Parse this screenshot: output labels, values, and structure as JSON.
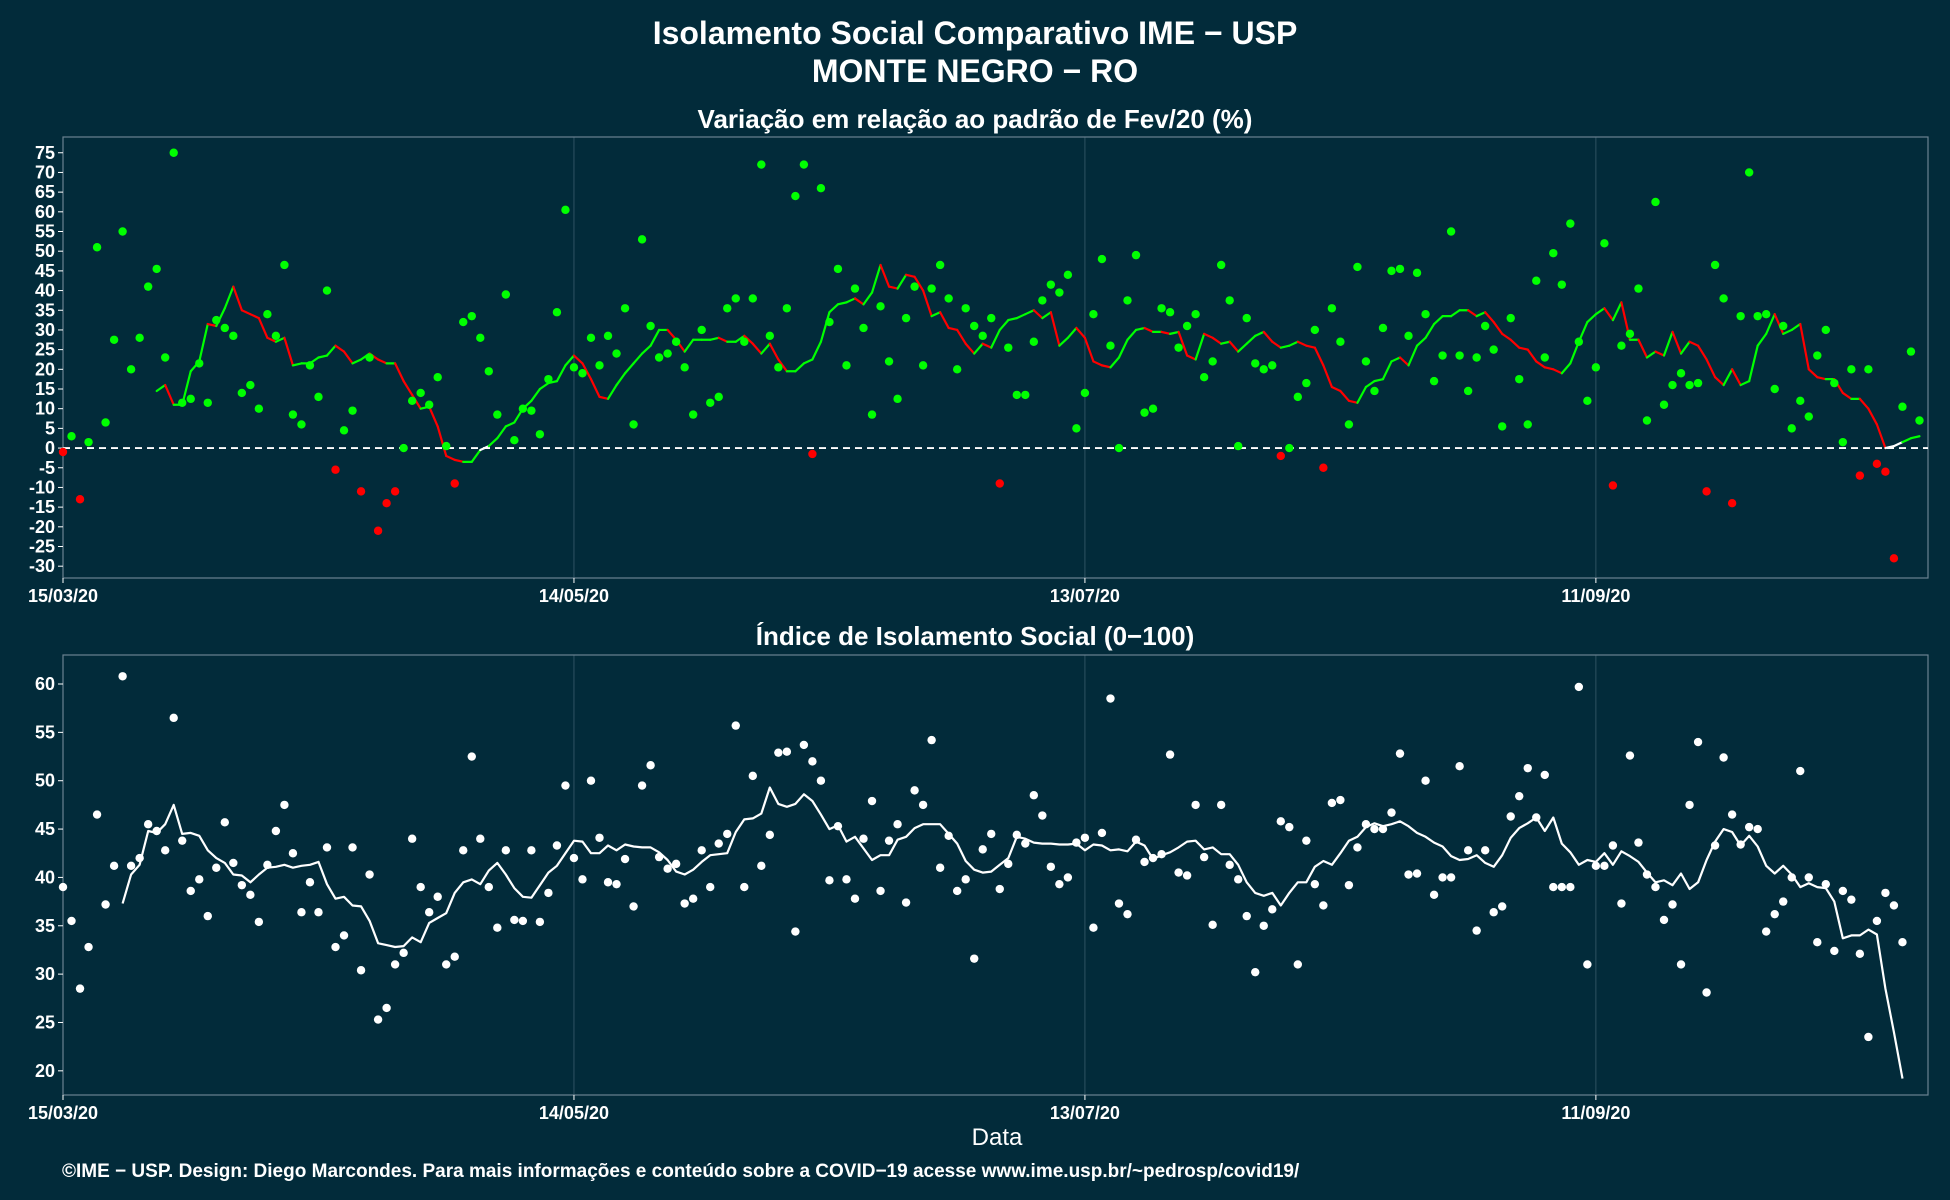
{
  "header": {
    "title_line1": "Isolamento Social Comparativo IME − USP",
    "title_line2": "MONTE NEGRO − RO"
  },
  "footer": {
    "credit": "©IME − USP. Design: Diego Marcondes. Para mais informações e conteúdo sobre a COVID−19 acesse www.ime.usp.br/~pedrosp/covid19/"
  },
  "colors": {
    "background": "#022b3a",
    "positive": "#00ff00",
    "negative": "#ff0000",
    "index": "#ffffff"
  },
  "chart_data": [
    {
      "type": "scatter",
      "title": "Variação em relação ao padrão de Fev/20 (%)",
      "xlabel": "",
      "ylabel": "",
      "x_tick_labels": [
        "15/03/20",
        "14/05/20",
        "13/07/20",
        "11/09/20"
      ],
      "x_tick_days": [
        0,
        60,
        120,
        180
      ],
      "xlim_days": [
        0,
        219
      ],
      "ylim": [
        -33,
        79
      ],
      "y_ticks": [
        -30,
        -25,
        -20,
        -15,
        -10,
        -5,
        0,
        5,
        10,
        15,
        20,
        25,
        30,
        35,
        40,
        45,
        50,
        55,
        60,
        65,
        70,
        75
      ],
      "reference_line": 0,
      "grid": "vertical",
      "series": [
        {
          "kind": "daily_points",
          "color_rule": "green if value >= 0, red if value < 0",
          "values": [
            -1,
            3,
            -13,
            1.5,
            51,
            6.5,
            27.5,
            55,
            20,
            28,
            41,
            45.5,
            23,
            75,
            11.5,
            12.5,
            21.5,
            11.5,
            32.5,
            30.5,
            28.5,
            14,
            16,
            10,
            34,
            28.5,
            46.5,
            8.5,
            6,
            21,
            13,
            40,
            -5.5,
            4.5,
            9.5,
            -11,
            23,
            -21,
            -14,
            -11,
            0,
            12,
            14,
            11,
            18,
            0.5,
            -9,
            32,
            33.5,
            28,
            19.5,
            8.5,
            39,
            2,
            10,
            9.5,
            3.5,
            17.5,
            34.5,
            60.5,
            20.5,
            19,
            28,
            21,
            28.5,
            24,
            35.5,
            6,
            53,
            31,
            23,
            24,
            27,
            20.5,
            8.5,
            30,
            11.5,
            13,
            35.5,
            38,
            27,
            38,
            72,
            28.5,
            20.5,
            35.5,
            64,
            72,
            -1.5,
            66,
            32,
            45.5,
            21,
            40.5,
            30.5,
            8.5,
            36,
            22,
            12.5,
            33,
            41,
            21,
            40.5,
            46.5,
            38,
            20,
            35.5,
            31,
            28.5,
            33,
            -9,
            25.5,
            13.5,
            13.5,
            27,
            37.5,
            41.5,
            39.5,
            44,
            5,
            14,
            34,
            48,
            26,
            0,
            37.5,
            49,
            9,
            10,
            35.5,
            34.5,
            25.5,
            31,
            34,
            18,
            22,
            46.5,
            37.5,
            0.5,
            33,
            21.5,
            20,
            21,
            -2,
            0,
            13,
            16.5,
            30,
            -5,
            35.5,
            27,
            6,
            46,
            22,
            14.5,
            30.5,
            45,
            45.5,
            28.5,
            44.5,
            34,
            17,
            23.5,
            55,
            23.5,
            14.5,
            23,
            31,
            25,
            5.5,
            33,
            17.5,
            6,
            42.5,
            23,
            49.5,
            41.5,
            57,
            27,
            12,
            20.5,
            52,
            -9.5,
            26,
            29,
            40.5,
            7,
            62.5,
            11,
            16,
            19,
            16,
            16.5,
            -11,
            46.5,
            38,
            -14,
            33.5,
            70,
            33.5,
            34,
            15,
            31,
            5,
            12,
            8,
            23.5,
            30,
            16.5,
            1.5,
            20,
            -7,
            20,
            -4,
            -6,
            -28,
            10.5,
            24.5,
            7
          ]
        },
        {
          "kind": "moving_average_line",
          "color_rule": "green when rising, red when falling, white when near zero",
          "values": [
            14.5,
            16,
            11,
            11,
            19.5,
            22,
            31.5,
            31,
            35.5,
            41,
            35,
            34,
            33,
            28,
            27,
            28,
            21,
            21.5,
            21.5,
            23,
            23.5,
            26,
            24.5,
            21.5,
            22.5,
            24,
            22.5,
            21.5,
            21.5,
            17,
            13.5,
            10,
            10.5,
            5.5,
            -2,
            -3,
            -3.5,
            -3.5,
            -0.5,
            0.5,
            2.5,
            5.5,
            6.5,
            10,
            12,
            15,
            16.5,
            17,
            21,
            23.5,
            21.5,
            17.5,
            13,
            12.5,
            16,
            19,
            21.5,
            24,
            26,
            30,
            30,
            27.5,
            24.5,
            27.5,
            27.5,
            27.5,
            28,
            27,
            27,
            28.5,
            26.5,
            24,
            26.5,
            22.5,
            19.5,
            19.5,
            21.5,
            22.5,
            27,
            34.5,
            36.5,
            37,
            38,
            36.5,
            39.5,
            46.5,
            41,
            40.5,
            44,
            43.5,
            40,
            33.5,
            34.5,
            30.5,
            30,
            26.5,
            24,
            26.5,
            25.5,
            30,
            32.5,
            33,
            34,
            35,
            33,
            34.5,
            26,
            28,
            30.5,
            28,
            22,
            21,
            20.5,
            23,
            27.5,
            30,
            30.5,
            29.5,
            29.5,
            29,
            29.5,
            23.5,
            22.5,
            29,
            28,
            26.5,
            27,
            24.5,
            26.5,
            28.5,
            29.5,
            27,
            25.5,
            26,
            27,
            26,
            25.5,
            21,
            15.5,
            14.5,
            12,
            11.5,
            15.5,
            17,
            17.5,
            22,
            23,
            21,
            26,
            28,
            31.5,
            33.5,
            33.5,
            35,
            35,
            33.5,
            34.5,
            32,
            29,
            27.5,
            25.5,
            25,
            22,
            20.5,
            20,
            19,
            21.5,
            27,
            32,
            34,
            35.5,
            32.5,
            37,
            27.5,
            27.5,
            23,
            24.5,
            23.5,
            29.5,
            24,
            27,
            26,
            22.5,
            18,
            16,
            20,
            16,
            17,
            26,
            29,
            34,
            29,
            30,
            31.5,
            20,
            18,
            17.5,
            17.5,
            14,
            12.5,
            12.5,
            10,
            6,
            0,
            0.5,
            1.5,
            2.5,
            3
          ]
        }
      ]
    },
    {
      "type": "scatter",
      "title": "Índice de Isolamento Social (0−100)",
      "xlabel": "Data",
      "ylabel": "",
      "x_tick_labels": [
        "15/03/20",
        "14/05/20",
        "13/07/20",
        "11/09/20"
      ],
      "x_tick_days": [
        0,
        60,
        120,
        180
      ],
      "xlim_days": [
        0,
        219
      ],
      "ylim": [
        17.5,
        63
      ],
      "y_ticks": [
        20,
        25,
        30,
        35,
        40,
        45,
        50,
        55,
        60
      ],
      "grid": "vertical",
      "series": [
        {
          "kind": "daily_points",
          "color": "#ffffff",
          "values": [
            39,
            35.5,
            28.5,
            32.8,
            46.5,
            37.2,
            41.2,
            60.8,
            41.2,
            42,
            45.5,
            44.8,
            42.8,
            56.5,
            43.8,
            38.6,
            39.8,
            36,
            41,
            45.7,
            41.5,
            39.2,
            38.2,
            35.4,
            41.3,
            44.8,
            47.5,
            42.5,
            36.4,
            39.5,
            36.4,
            43.1,
            32.8,
            34,
            43.1,
            30.4,
            40.3,
            25.3,
            26.5,
            31,
            32.2,
            44,
            39,
            36.4,
            38,
            31,
            31.8,
            42.8,
            52.5,
            44,
            39,
            34.8,
            42.8,
            35.6,
            35.5,
            42.8,
            35.4,
            38.4,
            43.3,
            49.5,
            42,
            39.8,
            50,
            44.1,
            39.5,
            39.3,
            41.9,
            37,
            49.5,
            51.6,
            42.1,
            40.9,
            41.4,
            37.3,
            37.8,
            42.8,
            39,
            43.5,
            44.5,
            55.7,
            39,
            50.5,
            41.2,
            44.4,
            52.9,
            53,
            34.4,
            53.7,
            52,
            50,
            39.7,
            45.3,
            39.8,
            37.8,
            44,
            47.9,
            38.6,
            43.8,
            45.5,
            37.4,
            49,
            47.5,
            54.2,
            41,
            44.3,
            38.6,
            39.8,
            31.6,
            42.9,
            44.5,
            38.8,
            41.4,
            44.4,
            43.5,
            48.5,
            46.4,
            41.1,
            39.3,
            40,
            43.6,
            44.1,
            34.8,
            44.6,
            58.5,
            37.3,
            36.2,
            43.9,
            41.6,
            42,
            42.4,
            52.7,
            40.5,
            40.2,
            47.5,
            42.1,
            35.1,
            47.5,
            41.3,
            39.8,
            36,
            30.2,
            35,
            36.7,
            45.8,
            45.2,
            31,
            43.8,
            39.3,
            37.1,
            47.7,
            48,
            39.2,
            43.1,
            45.5,
            45,
            45,
            46.7,
            52.8,
            40.3,
            40.4,
            50,
            38.2,
            40,
            40,
            51.5,
            42.8,
            34.5,
            42.8,
            36.4,
            37,
            46.3,
            48.4,
            51.3,
            46.2,
            50.6,
            39,
            39,
            39,
            59.7,
            31,
            41.2,
            41.2,
            43.3,
            37.3,
            52.6,
            43.6,
            40.3,
            39,
            35.6,
            37.2,
            31,
            47.5,
            54,
            28.1,
            43.3,
            52.4,
            46.5,
            43.4,
            45.2,
            45,
            34.4,
            36.2,
            37.5,
            40,
            51,
            40,
            33.3,
            39.3,
            32.4,
            38.6,
            37.7,
            32.1,
            23.5,
            35.5,
            38.4,
            37.1,
            33.3
          ]
        },
        {
          "kind": "moving_average_line",
          "color": "#ffffff",
          "values": [
            37.3,
            40.3,
            41.3,
            44.8,
            44.6,
            45.5,
            47.5,
            44.5,
            44.6,
            44.3,
            42.8,
            42,
            41.5,
            40.3,
            40.2,
            39.5,
            40.3,
            41,
            41.1,
            41.3,
            41,
            41.2,
            41.3,
            41.6,
            39.3,
            37.8,
            38,
            37.1,
            37,
            35.5,
            33.2,
            33,
            32.8,
            32.9,
            33.8,
            33.3,
            35.3,
            35.8,
            36.3,
            38.4,
            39.5,
            39.8,
            39.3,
            40.7,
            41.5,
            40.3,
            38.9,
            38,
            37.9,
            39.2,
            40.5,
            41.2,
            42.5,
            43.8,
            43.7,
            42.5,
            42.5,
            43.3,
            42.8,
            43.4,
            43.2,
            43.1,
            43.1,
            42.6,
            41.8,
            40.6,
            40.3,
            40.8,
            41.6,
            42.3,
            42.4,
            42.5,
            44.7,
            46,
            46.1,
            46.6,
            49.3,
            47.6,
            47.3,
            47.6,
            48.6,
            47.9,
            46.5,
            45,
            45.4,
            43.7,
            44.2,
            43,
            41.8,
            42.3,
            42.3,
            43.9,
            44.2,
            45.1,
            45.5,
            45.5,
            45.5,
            44.5,
            43.5,
            41.7,
            40.8,
            40.5,
            40.6,
            41.3,
            42,
            44.2,
            44,
            43.6,
            43.5,
            43.5,
            43.4,
            43.4,
            43.5,
            42.8,
            43.4,
            43.3,
            42.8,
            42.9,
            42.7,
            43.7,
            43.3,
            41.9,
            42.3,
            42.6,
            43.1,
            43.7,
            43.8,
            42.9,
            43.1,
            42.4,
            42.4,
            41.3,
            39.5,
            38.4,
            38.1,
            38.4,
            37.1,
            38.4,
            39.5,
            39.5,
            41.1,
            41.7,
            41.3,
            42.5,
            43.8,
            44.2,
            45.2,
            45.6,
            45.3,
            45.5,
            45.8,
            45.3,
            44.6,
            44.2,
            43.6,
            43.2,
            42.2,
            41.8,
            41.9,
            42.3,
            41.5,
            41.1,
            42.3,
            44.1,
            45.1,
            45.6,
            46.2,
            44.8,
            46.2,
            43.5,
            42.6,
            41.3,
            41.8,
            41.6,
            42.5,
            41.3,
            42.7,
            42.2,
            41.6,
            40.5,
            39.5,
            39.7,
            39.2,
            40.4,
            38.8,
            39.5,
            41.8,
            43.7,
            45,
            44.7,
            43.3,
            44.3,
            43.2,
            41.2,
            40.4,
            41.2,
            40.3,
            39,
            39.4,
            39,
            38.9,
            37.5,
            33.7,
            34,
            34,
            34.6,
            34.1,
            28.5,
            24,
            19.2
          ]
        }
      ]
    }
  ]
}
